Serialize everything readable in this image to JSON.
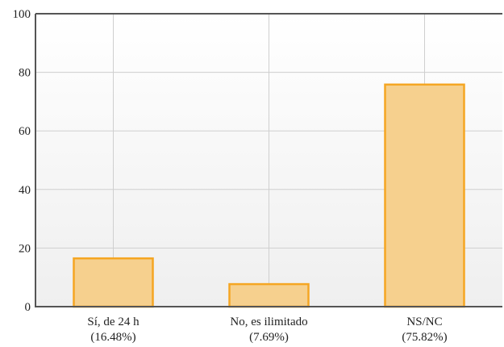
{
  "chart_data": {
    "type": "bar",
    "categories": [
      "Sí, de 24 h",
      "No, es ilimitado",
      "NS/NC"
    ],
    "category_percent_labels": [
      "(16.48%)",
      "(7.69%)",
      "(75.82%)"
    ],
    "values": [
      16.48,
      7.69,
      75.82
    ],
    "ylim": [
      0,
      100
    ],
    "yticks": [
      "0",
      "20",
      "40",
      "60",
      "80",
      "100"
    ],
    "ytick_values": [
      0,
      20,
      40,
      60,
      80,
      100
    ],
    "grid": true,
    "legend": "none",
    "colors": {
      "bar_fill": "#f6d08e",
      "bar_stroke": "#f5a623",
      "axis": "#555555",
      "grid": "#cfcfcf",
      "plot_bg_top": "#ffffff",
      "plot_bg_bottom": "#efefef"
    }
  }
}
